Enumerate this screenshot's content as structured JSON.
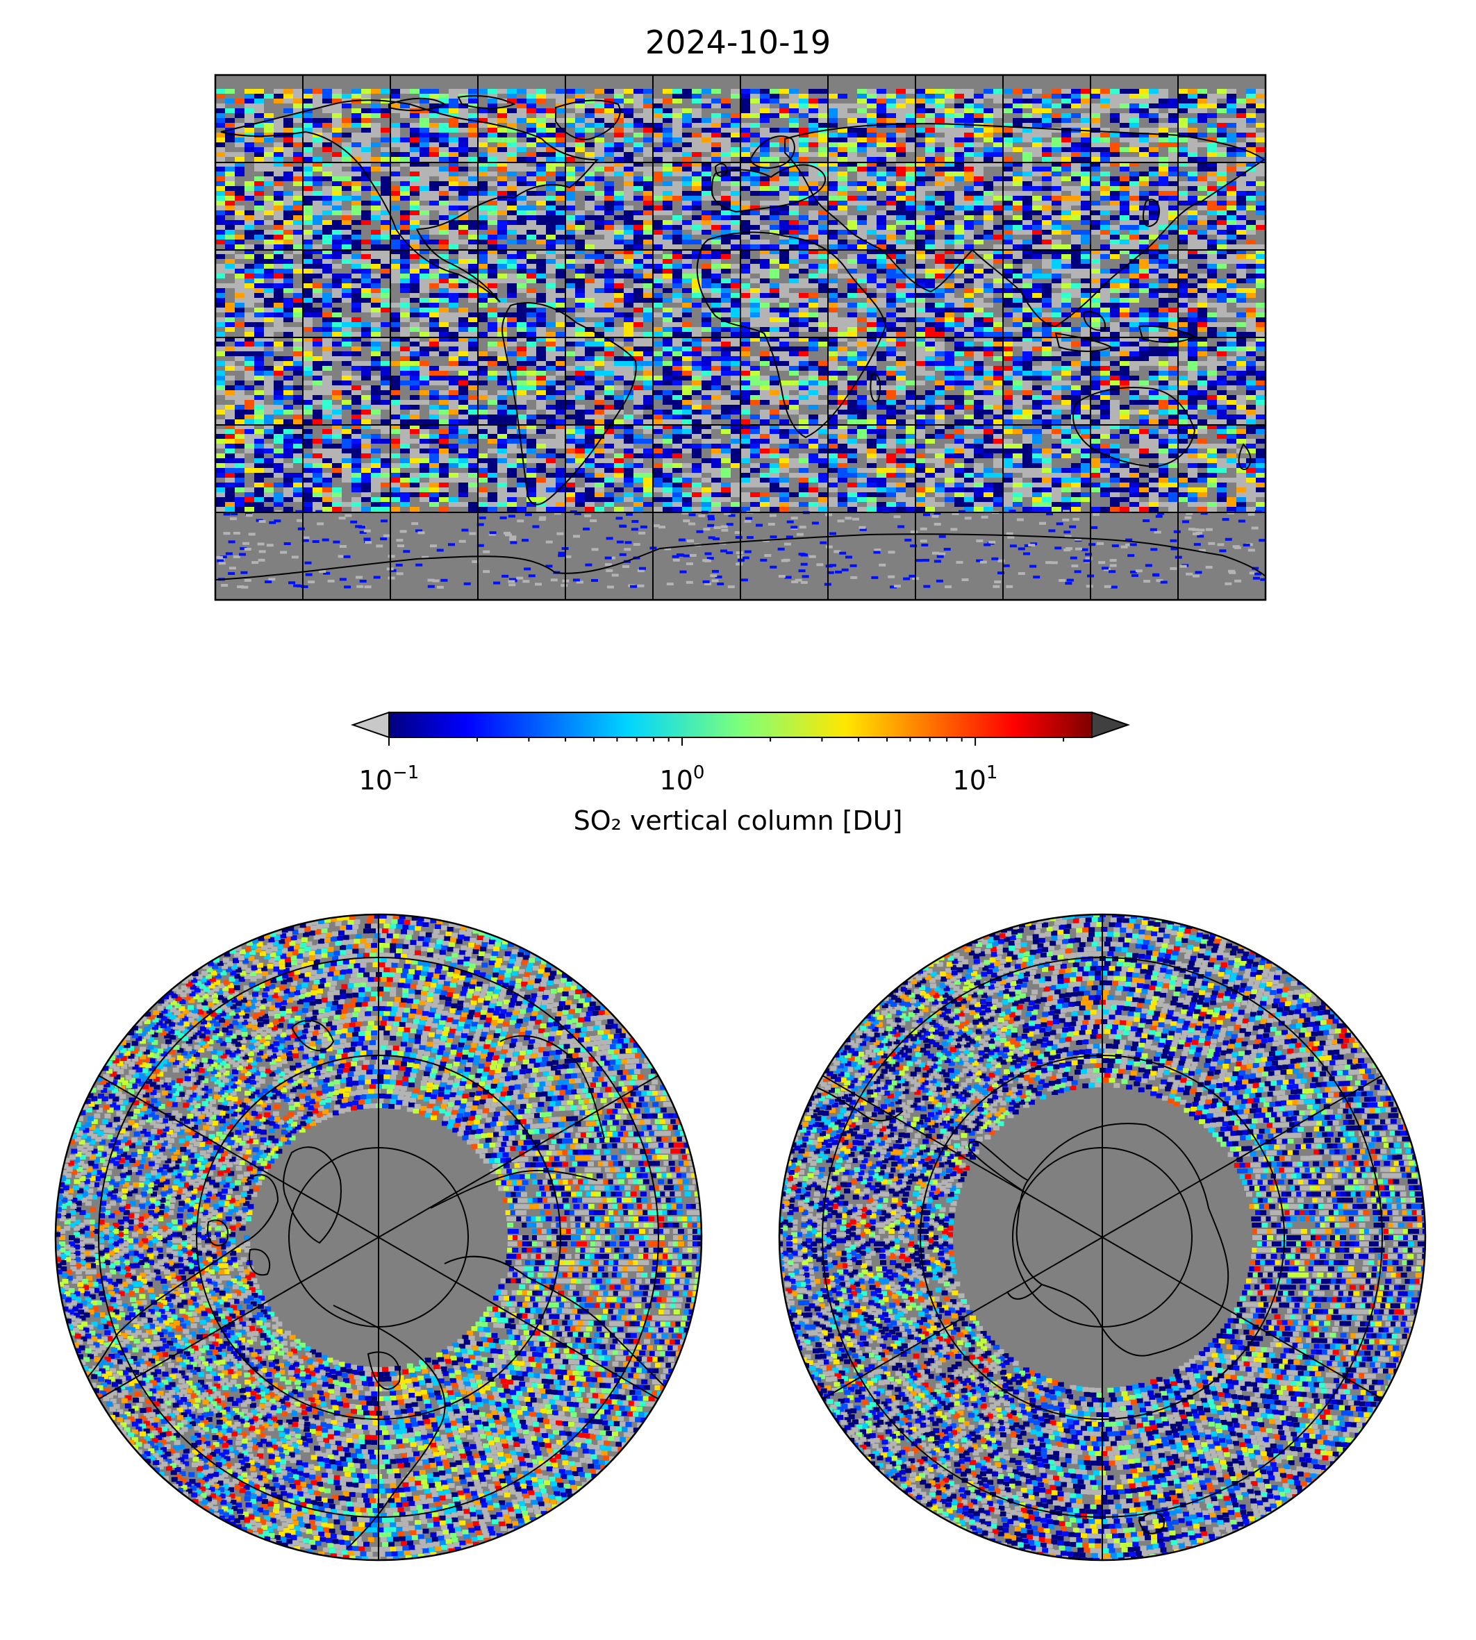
{
  "title": "2024-10-19",
  "colorbar": {
    "label": "SO₂ vertical column [DU]",
    "scale": "log",
    "range": [
      0.1,
      25
    ],
    "extend": "both",
    "under_color": "#c8c8c8",
    "over_color": "#404040",
    "colormap": "jet",
    "ticks": [
      {
        "base": "10",
        "exp": "−1",
        "value": 0.1
      },
      {
        "base": "10",
        "exp": "0",
        "value": 1
      },
      {
        "base": "10",
        "exp": "1",
        "value": 10
      }
    ]
  },
  "colors": {
    "ocean_background": "#808080",
    "no_signal": "#b4b4b4",
    "coastline": "#000000",
    "gridline": "#000000"
  },
  "panels": [
    {
      "projection": "plate-carree",
      "extent": "global",
      "gridlines": {
        "lon_step_deg": 30,
        "lat_step_deg": 30
      }
    },
    {
      "projection": "north-polar-stereographic",
      "gridlines": {
        "lon_step_deg": 60,
        "lat_rings": [
          80,
          60,
          40,
          20
        ]
      }
    },
    {
      "projection": "south-polar-stereographic",
      "gridlines": {
        "lon_step_deg": 60,
        "lat_rings": [
          -80,
          -60,
          -40,
          -20
        ]
      }
    }
  ]
}
